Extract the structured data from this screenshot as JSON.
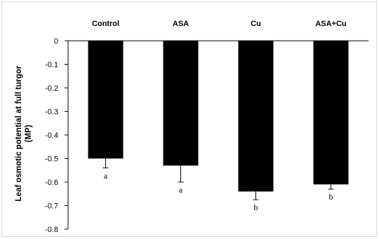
{
  "chart_data": {
    "type": "bar",
    "title": "",
    "categories": [
      "Control",
      "ASA",
      "Cu",
      "ASA+Cu"
    ],
    "values": [
      -0.5,
      -0.53,
      -0.64,
      -0.61
    ],
    "errors": [
      0.04,
      0.07,
      0.035,
      0.02
    ],
    "significance_letters": [
      "a",
      "a",
      "b",
      "b"
    ],
    "ylabel_line1": "Leaf  osmotic potential at full turgor",
    "ylabel_line2": "(MP)",
    "xlabel": "",
    "ylim": [
      -0.8,
      0
    ],
    "yticks": [
      0,
      -0.1,
      -0.2,
      -0.3,
      -0.4,
      -0.5,
      -0.6,
      -0.7,
      -0.8
    ],
    "ytick_labels": [
      "0",
      "-0.1",
      "-0.2",
      "-0.3",
      "-0.4",
      "-0.5",
      "-0.6",
      "-0.7",
      "-0.8"
    ],
    "bar_color": "#000000",
    "grid": false,
    "legend": "none"
  }
}
